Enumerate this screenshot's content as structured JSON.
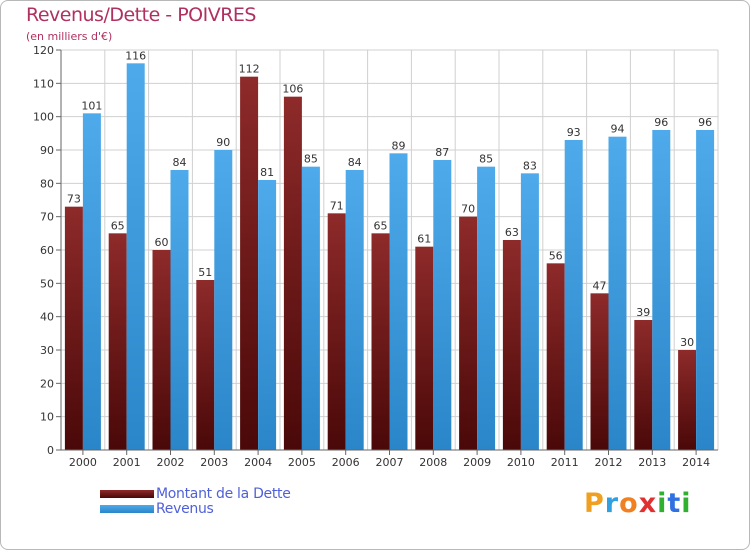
{
  "chart_data": {
    "type": "bar",
    "title": "Revenus/Dette - POIVRES",
    "subtitle": "(en milliers d'€)",
    "categories": [
      "2000",
      "2001",
      "2002",
      "2003",
      "2004",
      "2005",
      "2006",
      "2007",
      "2008",
      "2009",
      "2010",
      "2011",
      "2012",
      "2013",
      "2014"
    ],
    "series": [
      {
        "name": "Montant de la Dette",
        "color": "#7a1a1a",
        "values": [
          73,
          65,
          60,
          51,
          112,
          106,
          71,
          65,
          61,
          70,
          63,
          56,
          47,
          39,
          30
        ]
      },
      {
        "name": "Revenus",
        "color": "#3a9de0",
        "values": [
          101,
          116,
          84,
          90,
          81,
          85,
          84,
          89,
          87,
          85,
          83,
          93,
          94,
          96,
          96
        ]
      }
    ],
    "ylim": [
      0,
      120
    ],
    "yticks": [
      0,
      10,
      20,
      30,
      40,
      50,
      60,
      70,
      80,
      90,
      100,
      110,
      120
    ],
    "grid": true,
    "legend_position": "bottom-left"
  },
  "logo": {
    "letters": [
      "P",
      "r",
      "o",
      "x",
      "i",
      "t",
      "i"
    ],
    "colors": [
      "#f0a020",
      "#30a0e0",
      "#f08020",
      "#e03030",
      "#30b030",
      "#3070e0",
      "#30b030"
    ]
  }
}
